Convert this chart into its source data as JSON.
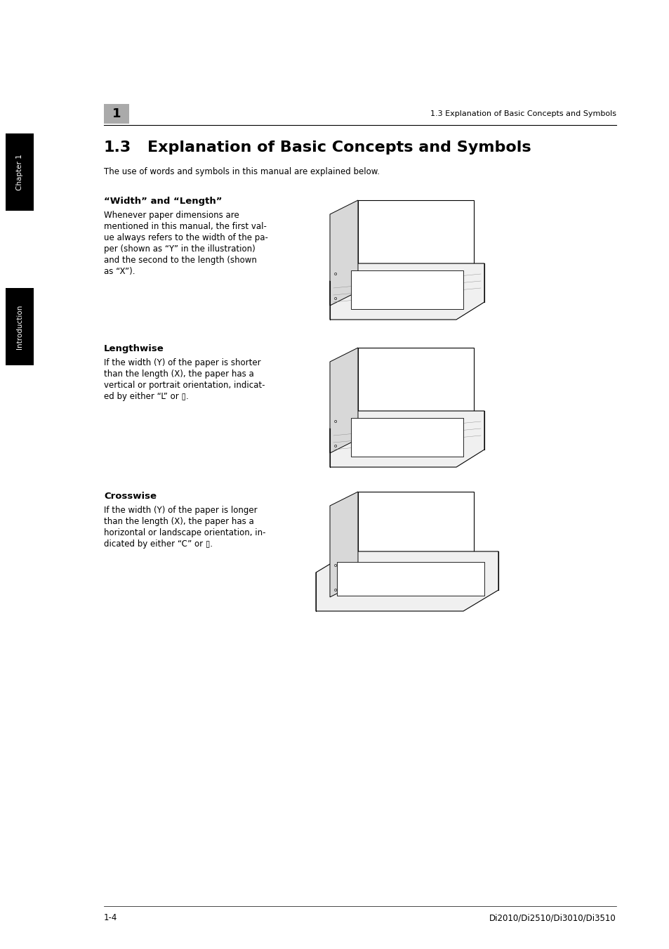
{
  "bg_color": "#ffffff",
  "page_width": 9.54,
  "page_height": 13.51,
  "dpi": 100,
  "header_number": "1",
  "header_number_box_color": "#aaaaaa",
  "header_text": "1.3 Explanation of Basic Concepts and Symbols",
  "chapter_tab_text": "Chapter 1",
  "chapter_tab_bg": "#000000",
  "chapter_tab_fg": "#ffffff",
  "intro_tab_text": "Introduction",
  "intro_tab_bg": "#000000",
  "intro_tab_fg": "#ffffff",
  "section_title_num": "1.3",
  "section_title_rest": "Explanation of Basic Concepts and Symbols",
  "section_subtitle": "The use of words and symbols in this manual are explained below.",
  "subsection1_title": "“Width” and “Length”",
  "subsection1_body": "Whenever paper dimensions are\nmentioned in this manual, the first val-\nue always refers to the width of the pa-\nper (shown as “Y” in the illustration)\nand the second to the length (shown\nas “X”).",
  "subsection2_title": "Lengthwise",
  "subsection2_body": "If the width (Y) of the paper is shorter\nthan the length (X), the paper has a\nvertical or portrait orientation, indicat-\ned by either “L” or ▯.",
  "subsection3_title": "Crosswise",
  "subsection3_body": "If the width (Y) of the paper is longer\nthan the length (X), the paper has a\nhorizontal or landscape orientation, in-\ndicated by either “C” or ▯.",
  "footer_left": "1-4",
  "footer_right": "Di2010/Di2510/Di3010/Di3510"
}
